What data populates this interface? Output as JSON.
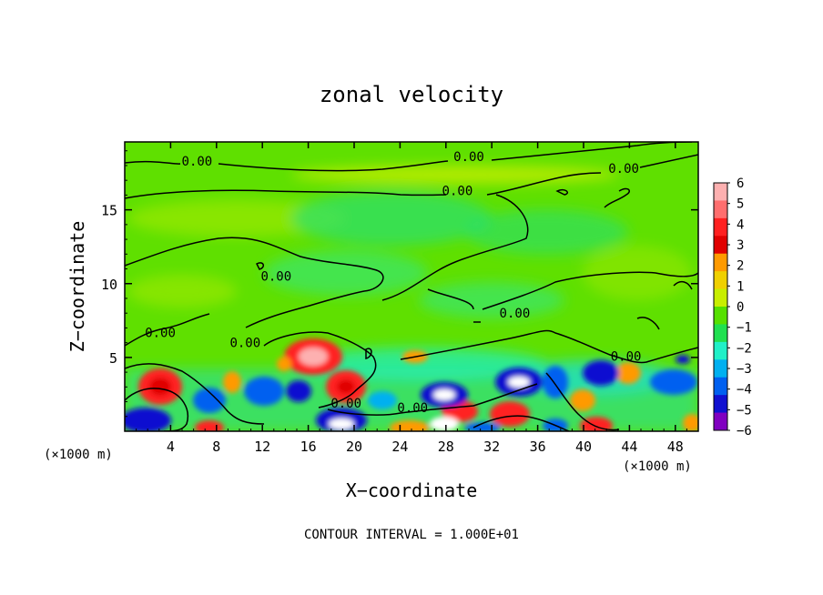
{
  "chart_data": {
    "type": "heatmap",
    "title": "zonal velocity",
    "xlabel": "X−coordinate",
    "ylabel": "Z−coordinate",
    "x_unit_left": "(×1000 m)",
    "x_unit_right": "(×1000 m)",
    "footer": "CONTOUR INTERVAL = 1.000E+01",
    "xlim": [
      0,
      50
    ],
    "ylim": [
      0,
      19.6
    ],
    "x_ticks": [
      4,
      8,
      12,
      16,
      20,
      24,
      28,
      32,
      36,
      40,
      44,
      48
    ],
    "x_tick_labels": [
      "4",
      "8",
      "12",
      "16",
      "20",
      "24",
      "28",
      "32",
      "36",
      "40",
      "44",
      "48"
    ],
    "y_ticks": [
      5,
      10,
      15
    ],
    "y_tick_labels": [
      "5",
      "10",
      "15"
    ],
    "colorbar": {
      "range": [
        -6,
        6
      ],
      "ticks": [
        6,
        5,
        4,
        3,
        2,
        1,
        0,
        -1,
        -2,
        -3,
        -4,
        -5,
        -6
      ],
      "tick_labels": [
        "6",
        "5",
        "4",
        "3",
        "2",
        "1",
        "0",
        "−1",
        "−2",
        "−3",
        "−4",
        "−5",
        "−6"
      ],
      "colors": [
        "#fdb0b0",
        "#ff6e6e",
        "#ff2020",
        "#e00000",
        "#ff9a00",
        "#f0d000",
        "#c8ee00",
        "#56e000",
        "#20e050",
        "#20f0c8",
        "#00b0f0",
        "#0060f0",
        "#1010d0",
        "#8000c0"
      ]
    },
    "contour_labels": [
      {
        "text": "0.00",
        "x": 6.3,
        "y": 18.3
      },
      {
        "text": "0.00",
        "x": 30.0,
        "y": 18.6
      },
      {
        "text": "0.00",
        "x": 43.5,
        "y": 17.8
      },
      {
        "text": "0.00",
        "x": 29.0,
        "y": 16.3
      },
      {
        "text": "0.00",
        "x": 13.2,
        "y": 10.5
      },
      {
        "text": "0.00",
        "x": 3.1,
        "y": 6.7
      },
      {
        "text": "0.00",
        "x": 10.5,
        "y": 6.0
      },
      {
        "text": "0.00",
        "x": 34.0,
        "y": 8.0
      },
      {
        "text": "0.00",
        "x": 43.7,
        "y": 5.1
      },
      {
        "text": "0.00",
        "x": 19.3,
        "y": 1.9
      },
      {
        "text": "0.00",
        "x": 25.1,
        "y": 1.6
      }
    ]
  }
}
